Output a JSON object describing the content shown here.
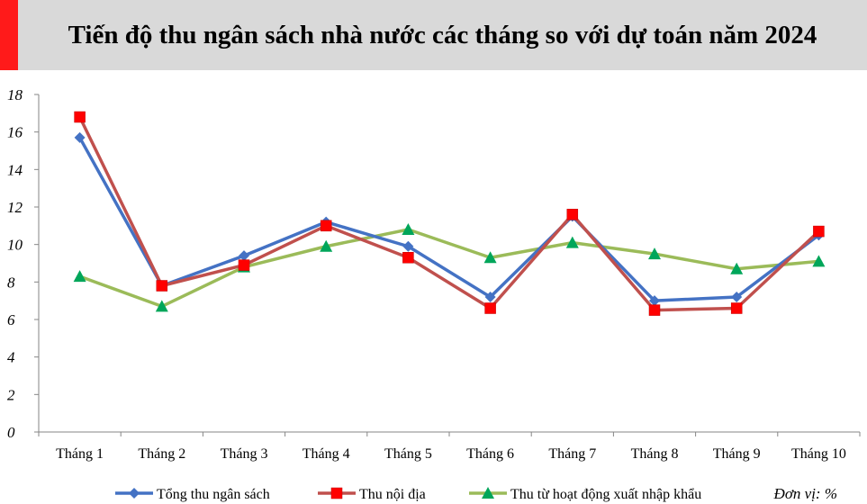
{
  "header": {
    "title": "Tiến độ thu ngân sách nhà nước các tháng so với dự toán năm 2024",
    "accent_color": "#ff1a1a",
    "background_color": "#d9d9d9"
  },
  "chart_data": {
    "type": "line",
    "title": "Tiến độ thu ngân sách nhà nước các tháng so với dự toán năm 2024",
    "xlabel": "",
    "ylabel": "",
    "unit_note": "Đơn vị: %",
    "categories": [
      "Tháng 1",
      "Tháng 2",
      "Tháng 3",
      "Tháng 4",
      "Tháng 5",
      "Tháng 6",
      "Tháng 7",
      "Tháng 8",
      "Tháng 9",
      "Tháng 10"
    ],
    "ylim": [
      0,
      18
    ],
    "yticks": [
      0,
      2,
      4,
      6,
      8,
      10,
      12,
      14,
      16,
      18
    ],
    "grid": false,
    "legend_position": "bottom",
    "series": [
      {
        "name": "Tổng thu ngân sách",
        "color": "#4472c4",
        "marker": "diamond",
        "values": [
          15.7,
          7.8,
          9.4,
          11.2,
          9.9,
          7.2,
          11.5,
          7.0,
          7.2,
          10.5
        ]
      },
      {
        "name": "Thu nội địa",
        "color": "#c0504d",
        "marker": "square",
        "values": [
          16.8,
          7.8,
          8.9,
          11.0,
          9.3,
          6.6,
          11.6,
          6.5,
          6.6,
          10.7
        ]
      },
      {
        "name": "Thu từ hoạt động xuất nhập khẩu",
        "color": "#9bbb59",
        "marker": "triangle",
        "values": [
          8.3,
          6.7,
          8.8,
          9.9,
          10.8,
          9.3,
          10.1,
          9.5,
          8.7,
          9.1
        ]
      }
    ]
  }
}
